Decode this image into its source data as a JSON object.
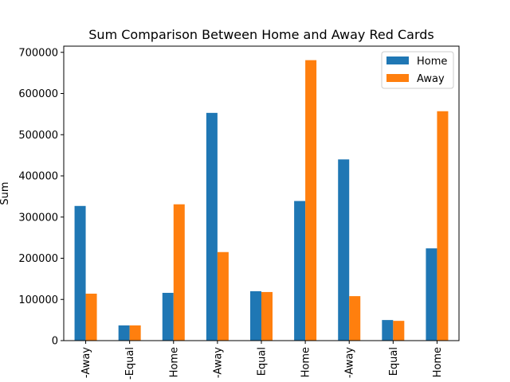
{
  "chart_data": {
    "type": "bar",
    "title": "Sum Comparison Between Home and Away Red Cards",
    "xlabel": "",
    "ylabel": "Sum",
    "categories": [
      "-Away",
      "-Equal",
      "Home",
      "-Away",
      "Equal",
      "Home",
      "-Away",
      "Equal",
      "Home"
    ],
    "series": [
      {
        "name": "Home",
        "color": "#1f77b4",
        "values": [
          327000,
          37000,
          116000,
          553000,
          120000,
          339000,
          440000,
          50000,
          224000
        ]
      },
      {
        "name": "Away",
        "color": "#ff7f0e",
        "values": [
          114000,
          37000,
          331000,
          215000,
          118000,
          681000,
          108000,
          48000,
          557000
        ]
      }
    ],
    "ylim": [
      0,
      715000
    ],
    "yticks": [
      0,
      100000,
      200000,
      300000,
      400000,
      500000,
      600000,
      700000
    ],
    "grid": false,
    "legend_position": "top-right"
  }
}
